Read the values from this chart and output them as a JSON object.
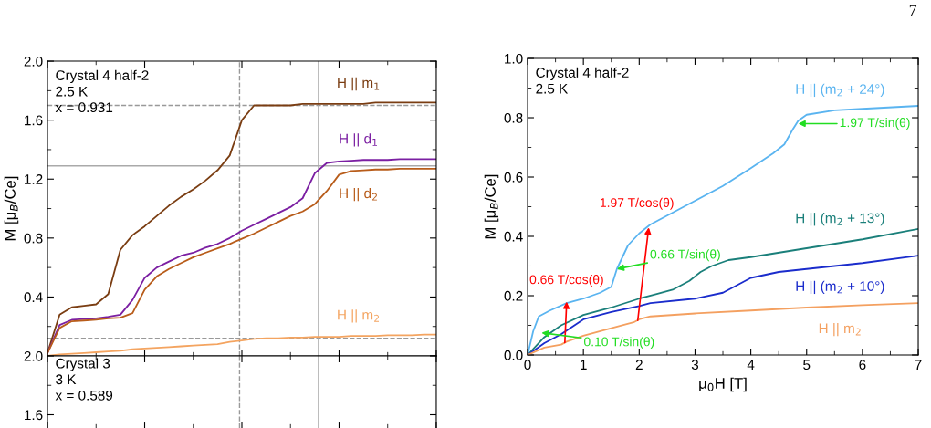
{
  "chart_data": [
    {
      "type": "line",
      "ylabel": "M [μ$_{B}$/Ce]",
      "tick_labels": "y",
      "categories": [
        null,
        null,
        null,
        null,
        null,
        null,
        null,
        null,
        null,
        null,
        null,
        null,
        null,
        null,
        null,
        null,
        null,
        null,
        null,
        null,
        null,
        null,
        null,
        null,
        null,
        null,
        null,
        null,
        null,
        null,
        null,
        null,
        null
      ],
      "ylim": [
        0,
        2.0
      ],
      "yticks": [
        {
          "value": 0,
          "label": null
        },
        0.4,
        0.8,
        1.2,
        1.6,
        {
          "value": 2,
          "label": "2.0"
        }
      ],
      "annotations": [
        "Crystal 4 half-2\n2.5 K\nx = 0.931"
      ],
      "ref_lines": [
        {
          "axis": "y",
          "value": 1.7,
          "line_style": "dashed",
          "color": "#999999"
        },
        {
          "axis": "y",
          "value": 1.29,
          "line_style": "solid",
          "color": "#aaaaaa"
        },
        {
          "axis": "y",
          "value": 0.12,
          "line_style": "dashed",
          "color": "#999999"
        }
      ],
      "series": [
        {
          "name": "H || m$_{1}$",
          "color": "#7a3d12",
          "values": [
            0.02,
            0.28,
            0.33,
            0.34,
            0.35,
            0.42,
            0.72,
            0.82,
            0.88,
            0.95,
            1.02,
            1.08,
            1.13,
            1.19,
            1.26,
            1.36,
            1.6,
            1.7,
            1.7,
            1.7,
            1.7,
            1.71,
            1.71,
            1.71,
            1.71,
            1.71,
            1.71,
            1.72,
            1.72,
            1.72,
            1.72,
            1.72,
            1.72
          ]
        },
        {
          "name": "H || d$_{1}$",
          "color": "#7b1fa2",
          "values": [
            0.02,
            0.21,
            0.245,
            0.25,
            0.255,
            0.265,
            0.28,
            0.38,
            0.53,
            0.6,
            0.64,
            0.68,
            0.7,
            0.735,
            0.76,
            0.8,
            0.85,
            0.89,
            0.93,
            0.97,
            1.01,
            1.07,
            1.24,
            1.31,
            1.32,
            1.325,
            1.33,
            1.33,
            1.33,
            1.335,
            1.335,
            1.335,
            1.335
          ]
        },
        {
          "name": "H || d$_{2}$",
          "color": "#b85c1a",
          "values": [
            0.02,
            0.19,
            0.235,
            0.24,
            0.245,
            0.255,
            0.26,
            0.29,
            0.45,
            0.54,
            0.59,
            0.63,
            0.67,
            0.7,
            0.73,
            0.76,
            0.795,
            0.83,
            0.87,
            0.91,
            0.95,
            0.98,
            1.03,
            1.12,
            1.23,
            1.255,
            1.26,
            1.265,
            1.265,
            1.27,
            1.27,
            1.27,
            1.27
          ]
        },
        {
          "name": "H || m$_{2}$",
          "color": "#f4a460",
          "values": [
            0.0,
            0.01,
            0.015,
            0.02,
            0.025,
            0.03,
            0.035,
            0.045,
            0.05,
            0.055,
            0.06,
            0.065,
            0.07,
            0.075,
            0.08,
            0.095,
            0.105,
            0.115,
            0.12,
            0.12,
            0.125,
            0.125,
            0.13,
            0.13,
            0.13,
            0.135,
            0.135,
            0.135,
            0.14,
            0.14,
            0.14,
            0.145,
            0.145
          ]
        }
      ]
    },
    {
      "type": "line",
      "tick_labels": "y",
      "categories": [
        null,
        null,
        null,
        null,
        null,
        null,
        null,
        null,
        null,
        null,
        null,
        null,
        null,
        null,
        null,
        null,
        null,
        null,
        null,
        null,
        null,
        null,
        null,
        null,
        null,
        null,
        null,
        null,
        null,
        null,
        null,
        null,
        null
      ],
      "ylim": [
        1.51,
        2.0
      ],
      "yticks": [
        1.6,
        {
          "value": 2,
          "label": "2.0"
        }
      ],
      "annotations": [
        "Crystal 3\n3 K\nx = 0.589"
      ]
    },
    {
      "type": "line",
      "xlabel": "μ$_{0}$H [T]",
      "ylabel": "M [μ$_{B}$/Ce]",
      "xlim": [
        0,
        7
      ],
      "xticks": [
        0,
        1,
        2,
        3,
        4,
        5,
        6,
        7
      ],
      "ylim": [
        0.0,
        1.0
      ],
      "yticks": [
        {
          "value": 0,
          "label": "0.0"
        },
        0.2,
        0.4,
        0.6,
        0.8,
        {
          "value": 1,
          "label": "1.0"
        }
      ],
      "annotations": [
        "Crystal 4 half-2\n2.5 K",
        "7",
        {
          "text": "0.66 T/cos(θ)",
          "x": 0.7,
          "y": 0.18
        },
        {
          "text": "1.97 T/cos(θ)",
          "x": 2.17,
          "y": 0.43
        },
        {
          "text": "0.10 T/sin(θ)",
          "x": 0.25,
          "y": 0.075
        },
        {
          "text": "0.66 T/sin(θ)",
          "x": 1.6,
          "y": 0.29
        },
        {
          "text": "1.97 T/sin(θ)",
          "x": 4.85,
          "y": 0.78
        }
      ],
      "series": [
        {
          "name": "H || (m$_{2}$ + 24°)",
          "color": "#5ab4f0",
          "x": [
            0,
            0.1,
            0.2,
            0.4,
            0.7,
            1.0,
            1.3,
            1.5,
            1.6,
            1.8,
            2.0,
            2.2,
            2.5,
            3.0,
            3.5,
            4.0,
            4.4,
            4.6,
            4.75,
            4.85,
            5.0,
            5.5,
            6.0,
            7.0
          ],
          "values": [
            0,
            0.08,
            0.13,
            0.15,
            0.175,
            0.19,
            0.21,
            0.23,
            0.29,
            0.37,
            0.41,
            0.44,
            0.47,
            0.52,
            0.57,
            0.63,
            0.68,
            0.71,
            0.76,
            0.79,
            0.81,
            0.825,
            0.83,
            0.84
          ]
        },
        {
          "name": "H || (m$_{2}$ + 13°)",
          "color": "#1a7f7a",
          "x": [
            0,
            0.3,
            0.6,
            1.0,
            1.5,
            2.0,
            2.3,
            2.6,
            2.9,
            3.1,
            3.3,
            3.6,
            4.0,
            5.0,
            6.0,
            7.0
          ],
          "values": [
            0,
            0.06,
            0.1,
            0.135,
            0.16,
            0.19,
            0.205,
            0.22,
            0.25,
            0.28,
            0.3,
            0.32,
            0.33,
            0.36,
            0.39,
            0.425
          ]
        },
        {
          "name": "H || (m$_{2}$ + 10°)",
          "color": "#1a2ccc",
          "x": [
            0,
            0.3,
            0.6,
            1.0,
            1.5,
            2.0,
            2.2,
            3.0,
            3.5,
            3.8,
            4.0,
            4.5,
            5.0,
            6.0,
            7.0
          ],
          "values": [
            0,
            0.04,
            0.07,
            0.12,
            0.145,
            0.165,
            0.175,
            0.19,
            0.21,
            0.24,
            0.26,
            0.28,
            0.29,
            0.31,
            0.335
          ]
        },
        {
          "name": "H || m$_{2}$",
          "color": "#f4a060",
          "x": [
            0,
            0.3,
            0.6,
            0.7,
            1.0,
            1.5,
            1.9,
            2.0,
            2.2,
            3.0,
            4.0,
            5.0,
            6.0,
            7.0
          ],
          "values": [
            0,
            0.025,
            0.035,
            0.045,
            0.065,
            0.09,
            0.11,
            0.12,
            0.13,
            0.14,
            0.15,
            0.16,
            0.168,
            0.175
          ]
        }
      ]
    }
  ]
}
